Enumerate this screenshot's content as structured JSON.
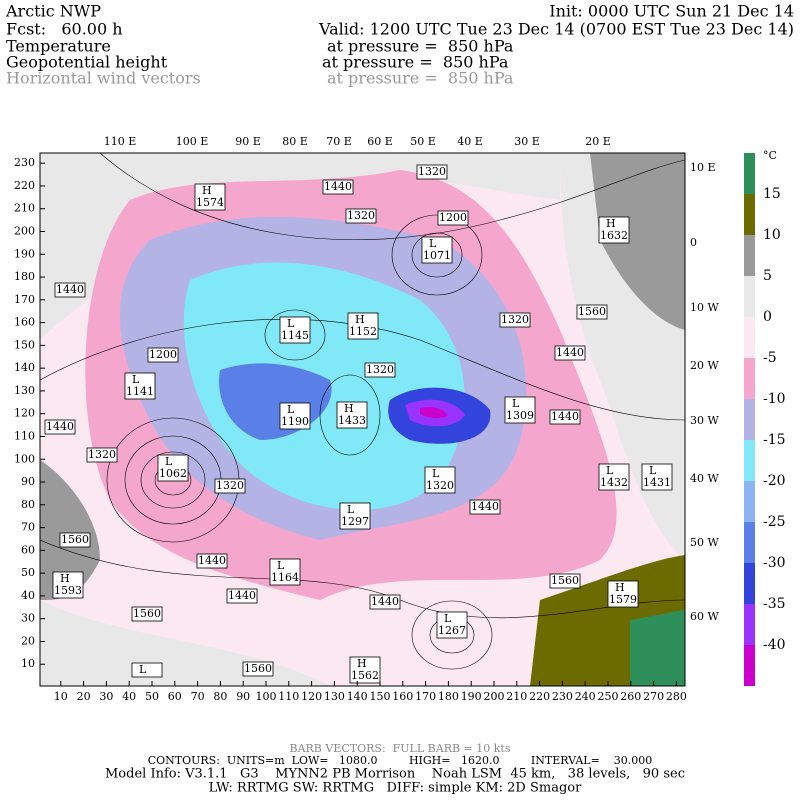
{
  "header": {
    "model": "Arctic NWP",
    "forecast": "Fcst:   60.00 h",
    "init": "Init: 0000 UTC Sun 21 Dec 14",
    "valid": "Valid: 1200 UTC Tue 23 Dec 14 (0700 EST Tue 23 Dec 14)",
    "fields": [
      {
        "name": "Temperature",
        "level": "at pressure =  850 hPa"
      },
      {
        "name": "Geopotential height",
        "level": "at pressure =  850 hPa"
      },
      {
        "name": "Horizontal wind vectors",
        "level": "at pressure =  850 hPa"
      }
    ]
  },
  "axes": {
    "top_labels": [
      "110 E",
      "100 E",
      "90 E",
      "80 E",
      "70 E",
      "60 E",
      "50 E",
      "40 E",
      "30 E",
      "20 E"
    ],
    "right_labels": [
      "10 E",
      "0",
      "10 W",
      "20 W",
      "30 W",
      "40 W",
      "50 W",
      "60 W"
    ],
    "yticks": [
      10,
      20,
      30,
      40,
      50,
      60,
      70,
      80,
      90,
      100,
      110,
      120,
      130,
      140,
      150,
      160,
      170,
      180,
      190,
      200,
      210,
      220,
      230
    ],
    "xticks": [
      10,
      20,
      30,
      40,
      50,
      60,
      70,
      80,
      90,
      100,
      110,
      120,
      130,
      140,
      150,
      160,
      170,
      180,
      190,
      200,
      210,
      220,
      230,
      240,
      250,
      260,
      270,
      280
    ]
  },
  "colorbar": {
    "unit": "°C",
    "levels": [
      15,
      10,
      5,
      0,
      -5,
      -10,
      -15,
      -20,
      -25,
      -30,
      -35,
      -40
    ],
    "colors": [
      "#2f8f5a",
      "#6b6b00",
      "#9a9a9a",
      "#e8e8e8",
      "#fbe8f0",
      "#f4a6cc",
      "#b3b3e6",
      "#80e8f7",
      "#8cb4f2",
      "#5a80e8",
      "#3344dd",
      "#9933ff",
      "#cc00cc"
    ]
  },
  "contour_labels": [
    {
      "letter": "H",
      "height": 1574
    },
    {
      "height": 1440
    },
    {
      "height": 1320
    },
    {
      "height": 1320
    },
    {
      "height": 1200
    },
    {
      "letter": "L",
      "height": 1071
    },
    {
      "letter": "H",
      "height": 1632
    },
    {
      "height": 1440
    },
    {
      "letter": "L",
      "height": 1145
    },
    {
      "letter": "H",
      "height": 1152
    },
    {
      "height": 1320
    },
    {
      "height": 1560
    },
    {
      "height": 1200
    },
    {
      "height": 1440
    },
    {
      "letter": "L",
      "height": 1141
    },
    {
      "height": 1320
    },
    {
      "letter": "L",
      "height": 1190
    },
    {
      "letter": "H",
      "height": 1433
    },
    {
      "letter": "L",
      "height": 1309
    },
    {
      "height": 1440
    },
    {
      "height": 1440
    },
    {
      "height": 1320
    },
    {
      "letter": "L",
      "height": 1062
    },
    {
      "height": 1320
    },
    {
      "letter": "L",
      "height": 1320
    },
    {
      "letter": "L",
      "height": 1432
    },
    {
      "letter": "L",
      "height": 1431
    },
    {
      "height": 1440
    },
    {
      "letter": "L",
      "height": 1297
    },
    {
      "height": 1560
    },
    {
      "height": 1440
    },
    {
      "letter": "L",
      "height": 1164
    },
    {
      "height": 1560
    },
    {
      "letter": "H",
      "height": 1593
    },
    {
      "letter": "H",
      "height": 1579
    },
    {
      "height": 1440
    },
    {
      "height": 1440
    },
    {
      "height": 1560
    },
    {
      "letter": "L",
      "height": 1267
    },
    {
      "letter": "L"
    },
    {
      "height": 1560
    },
    {
      "letter": "H",
      "height": 1562
    }
  ],
  "footer": {
    "barbs": "BARB VECTORS:  FULL BARB = 10 kts",
    "contours": "CONTOURS:  UNITS=m  LOW=   1080.0         HIGH=   1620.0         INTERVAL=    30.000",
    "model_info": "Model Info: V3.1.1   G3    MYNN2 PB Morrison    Noah LSM  45 km,   38 levels,   90 sec",
    "physics": "LW: RRTMG SW: RRTMG   DIFF: simple KM: 2D Smagor"
  }
}
